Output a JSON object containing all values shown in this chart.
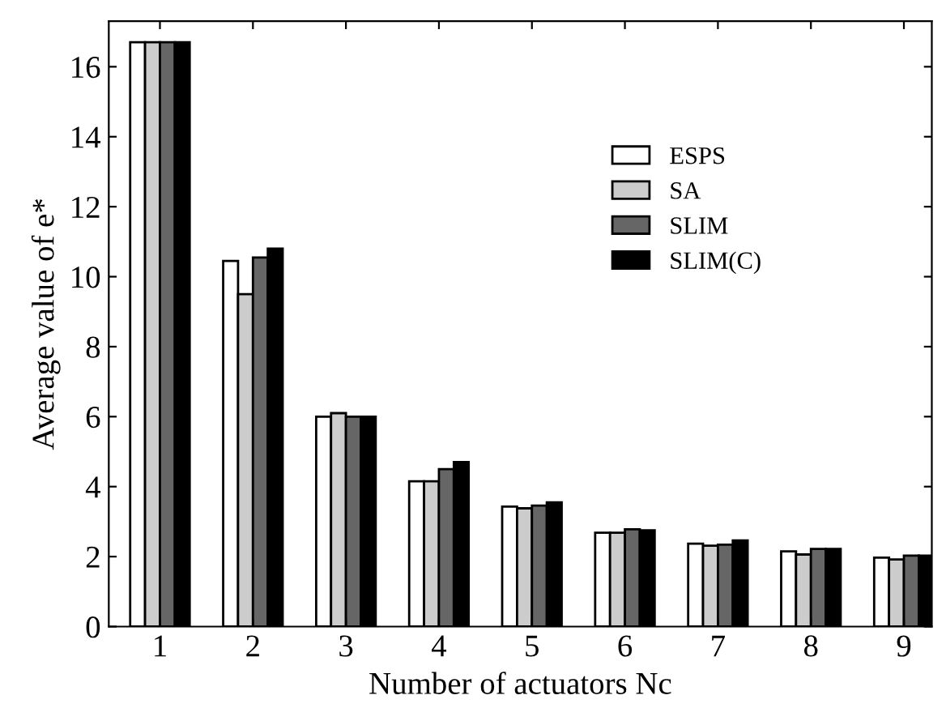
{
  "chart_data": {
    "type": "bar",
    "xlabel": "Number of actuators Nc",
    "ylabel": "Average value of e*",
    "categories": [
      "1",
      "2",
      "3",
      "4",
      "5",
      "6",
      "7",
      "8",
      "9"
    ],
    "series": [
      {
        "name": "ESPS",
        "color": "#ffffff",
        "values": [
          16.7,
          10.45,
          6.0,
          4.15,
          3.43,
          2.68,
          2.37,
          2.15,
          1.97
        ]
      },
      {
        "name": "SA",
        "color": "#cccccc",
        "values": [
          16.7,
          9.5,
          6.1,
          4.15,
          3.38,
          2.68,
          2.31,
          2.06,
          1.92
        ]
      },
      {
        "name": "SLIM",
        "color": "#666666",
        "values": [
          16.7,
          10.55,
          6.0,
          4.5,
          3.46,
          2.78,
          2.34,
          2.22,
          2.03
        ]
      },
      {
        "name": "SLIM(C)",
        "color": "#000000",
        "values": [
          16.7,
          10.8,
          6.0,
          4.7,
          3.55,
          2.75,
          2.46,
          2.22,
          2.03
        ]
      }
    ],
    "ylim": [
      0,
      17.3
    ],
    "yticks": [
      0,
      2,
      4,
      6,
      8,
      10,
      12,
      14,
      16
    ],
    "grid": false,
    "legend": "top right"
  }
}
